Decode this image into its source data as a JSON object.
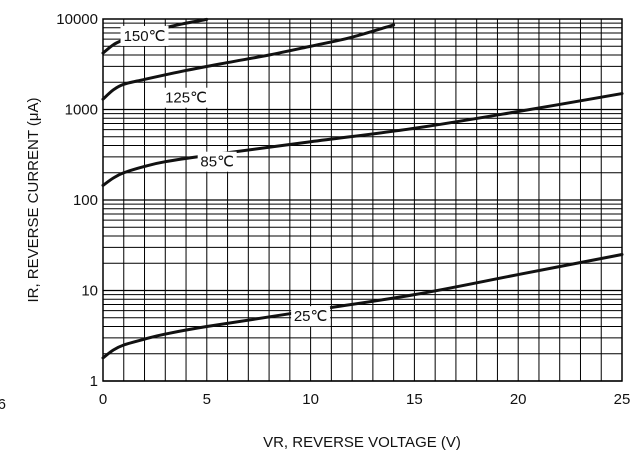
{
  "chart_data": {
    "type": "line",
    "title": "",
    "xlabel": "VR, REVERSE VOLTAGE (V)",
    "ylabel": "IR, REVERSE CURRENT (μA)",
    "xlim": [
      0,
      25
    ],
    "ylim": [
      1,
      10000
    ],
    "yscale": "log",
    "grid": true,
    "x_ticks": [
      "0",
      "5",
      "10",
      "15",
      "20",
      "25"
    ],
    "y_ticks": [
      "1",
      "10",
      "100",
      "1000",
      "10000"
    ],
    "edge_fragment": "6",
    "series": [
      {
        "name": "150℃",
        "label_at": [
          2.0,
          6500
        ],
        "x": [
          0,
          0.5,
          1,
          1.5,
          2,
          3,
          4,
          5
        ],
        "y": [
          4200,
          5200,
          5900,
          6500,
          7000,
          8000,
          9000,
          9900
        ]
      },
      {
        "name": "125℃",
        "label_at": [
          4.0,
          1350
        ],
        "x": [
          0,
          0.5,
          1,
          2,
          4,
          6,
          8,
          10,
          12,
          14
        ],
        "y": [
          1300,
          1650,
          1900,
          2150,
          2700,
          3300,
          4000,
          5000,
          6300,
          8600
        ]
      },
      {
        "name": "85℃",
        "label_at": [
          5.5,
          265
        ],
        "x": [
          0,
          0.5,
          1,
          2,
          3,
          5,
          10,
          15,
          20,
          25
        ],
        "y": [
          145,
          175,
          200,
          235,
          265,
          310,
          440,
          620,
          950,
          1500
        ]
      },
      {
        "name": "25℃",
        "label_at": [
          10.0,
          5.2
        ],
        "x": [
          0,
          0.5,
          1,
          2,
          3,
          5,
          10,
          15,
          20,
          25
        ],
        "y": [
          1.8,
          2.2,
          2.5,
          2.9,
          3.3,
          4.0,
          6.0,
          9.0,
          15.0,
          25.0
        ]
      }
    ]
  }
}
